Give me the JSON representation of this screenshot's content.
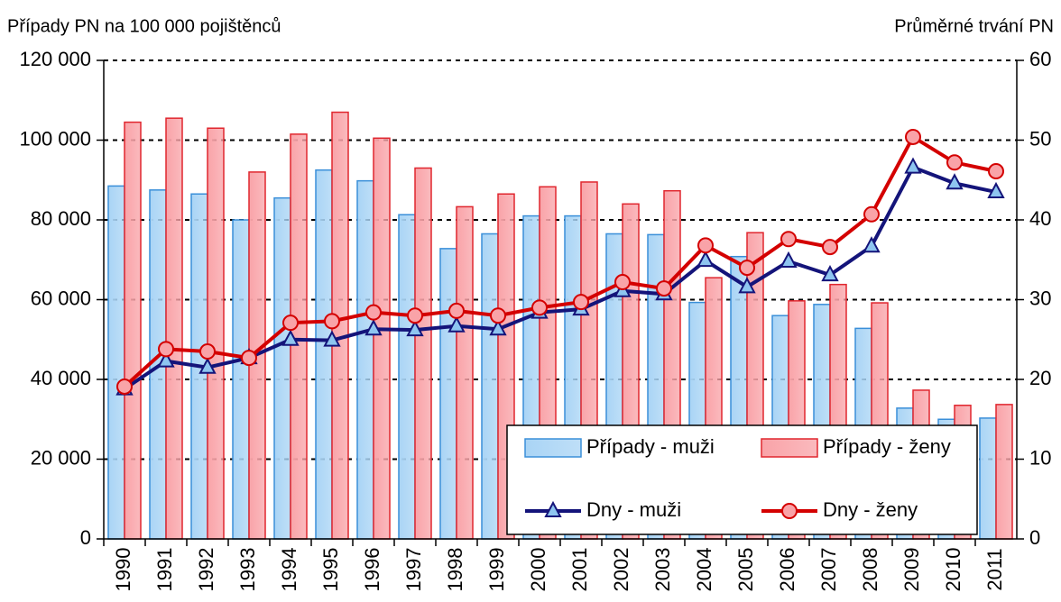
{
  "chart_data": {
    "type": "bar",
    "y_label": "Případy PN na 100 000 pojištěnců",
    "y2_label": "Průměrné trvání PN",
    "categories": [
      "1990",
      "1991",
      "1992",
      "1993",
      "1994",
      "1995",
      "1996",
      "1997",
      "1998",
      "1999",
      "2000",
      "2001",
      "2002",
      "2003",
      "2004",
      "2005",
      "2006",
      "2007",
      "2008",
      "2009",
      "2010",
      "2011"
    ],
    "series": [
      {
        "name": "Případy - muži",
        "type": "bar",
        "color": "#a9d4f5",
        "edge": "#3a8fd9",
        "values": [
          88500,
          87500,
          86500,
          80000,
          85500,
          92500,
          89800,
          81300,
          72800,
          76500,
          81000,
          81000,
          76500,
          76300,
          59300,
          70800,
          56000,
          58800,
          52800,
          32800,
          30000,
          30300
        ]
      },
      {
        "name": "Případy - ženy",
        "type": "bar",
        "color": "#f9a3a8",
        "edge": "#e0262e",
        "values": [
          104500,
          105500,
          103000,
          92000,
          101500,
          107000,
          100500,
          93000,
          83300,
          86500,
          88300,
          89500,
          84000,
          87300,
          65500,
          76800,
          59700,
          63800,
          59200,
          37300,
          33500,
          33700
        ]
      },
      {
        "name": "Dny - muži",
        "type": "line",
        "axis": "y2",
        "marker": "triangle",
        "color": "#14147a",
        "marker_color": "#8ec5f0",
        "values": [
          18.8,
          22.3,
          21.5,
          22.7,
          25.0,
          24.9,
          26.3,
          26.2,
          26.7,
          26.3,
          28.4,
          28.8,
          31.1,
          30.7,
          34.9,
          31.6,
          34.8,
          33.1,
          36.7,
          46.6,
          44.6,
          43.5
        ]
      },
      {
        "name": "Dny - ženy",
        "type": "line",
        "axis": "y2",
        "marker": "circle",
        "color": "#d40000",
        "marker_color": "#f9a3a8",
        "values": [
          19.1,
          23.8,
          23.5,
          22.7,
          27.1,
          27.3,
          28.4,
          28.0,
          28.6,
          28.0,
          29.0,
          29.7,
          32.2,
          31.4,
          36.8,
          34.0,
          37.6,
          36.6,
          40.7,
          50.4,
          47.2,
          46.1
        ]
      }
    ],
    "ylim": [
      0,
      120000
    ],
    "yticks": [
      0,
      {
        "value": 20000,
        "label": "20 000"
      },
      {
        "value": 40000,
        "label": "40 000"
      },
      {
        "value": 60000,
        "label": "60 000"
      },
      {
        "value": 80000,
        "label": "80 000"
      },
      {
        "value": 100000,
        "label": "100 000"
      },
      {
        "value": 120000,
        "label": "120 000"
      }
    ],
    "y2lim": [
      0,
      60
    ],
    "y2ticks": [
      0,
      10,
      20,
      30,
      40,
      50,
      60
    ],
    "grid": true,
    "legend": "lower right"
  }
}
